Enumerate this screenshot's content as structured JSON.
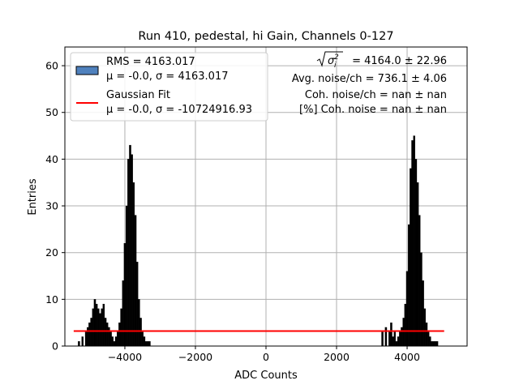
{
  "chart_data": {
    "type": "bar",
    "title": "Run 410, pedestal, hi Gain, Channels 0-127",
    "xlabel": "ADC Counts",
    "ylabel": "Entries",
    "xlim": [
      -5700,
      5700
    ],
    "ylim": [
      0,
      64
    ],
    "grid": true,
    "xticks": [
      -4000,
      -2000,
      0,
      2000,
      4000
    ],
    "xtick_labels": [
      "−4000",
      "−2000",
      "0",
      "2000",
      "4000"
    ],
    "yticks": [
      0,
      10,
      20,
      30,
      40,
      50,
      60
    ],
    "ytick_labels": [
      "0",
      "10",
      "20",
      "30",
      "40",
      "50",
      "60"
    ],
    "histogram": {
      "x": [
        -5300,
        -5200,
        -5100,
        -5050,
        -5000,
        -4950,
        -4900,
        -4850,
        -4800,
        -4750,
        -4700,
        -4650,
        -4600,
        -4550,
        -4500,
        -4450,
        -4400,
        -4350,
        -4300,
        -4250,
        -4200,
        -4150,
        -4100,
        -4050,
        -4000,
        -3950,
        -3900,
        -3850,
        -3800,
        -3750,
        -3700,
        -3650,
        -3600,
        -3550,
        -3500,
        -3450,
        -3400,
        -3350,
        -3300,
        3300,
        3400,
        3500,
        3550,
        3600,
        3650,
        3700,
        3750,
        3800,
        3850,
        3900,
        3950,
        4000,
        4050,
        4100,
        4150,
        4200,
        4250,
        4300,
        4350,
        4400,
        4450,
        4500,
        4550,
        4600,
        4650,
        4700,
        4750,
        4800,
        4850
      ],
      "y": [
        1,
        2,
        3,
        4,
        5,
        6,
        8,
        10,
        9,
        8,
        7,
        8,
        9,
        6,
        5,
        4,
        3,
        2,
        1,
        2,
        3,
        5,
        8,
        14,
        22,
        30,
        40,
        43,
        41,
        35,
        28,
        18,
        10,
        6,
        3,
        2,
        1,
        1,
        1,
        3,
        4,
        3,
        5,
        2,
        3,
        1,
        2,
        3,
        4,
        6,
        9,
        16,
        26,
        38,
        44,
        45,
        40,
        35,
        28,
        20,
        14,
        8,
        5,
        3,
        2,
        1,
        1,
        1,
        1
      ],
      "bin_width": 50,
      "legend": "RMS = 4163.017\nμ = -0.0, σ = 4163.017"
    },
    "gaussian_fit": {
      "x": [
        -5450,
        5050
      ],
      "y": [
        3.2,
        3.2
      ],
      "color": "#ff0000",
      "legend": "Gaussian Fit\nμ = -0.0, σ = -10724916.93"
    },
    "colors": {
      "hist_fill": "#000000",
      "hist_legend_patch": "#4f81bd",
      "fit_line": "#ff0000",
      "grid": "#b0b0b0"
    },
    "legend_position": "upper-left",
    "legend_entries": [
      {
        "label_line1": "RMS = 4163.017",
        "label_line2": "μ = -0.0, σ = 4163.017"
      },
      {
        "label_line1": "Gaussian Fit",
        "label_line2": "μ = -0.0, σ = -10724916.93"
      }
    ],
    "annotations": {
      "line1_value": " = 4164.0 ± 22.96",
      "line2": "Avg. noise/ch = 736.1 ± 4.06",
      "line3": "Coh. noise/ch = nan ± nan",
      "line4": "[%] Coh. noise = nan ± nan"
    }
  }
}
